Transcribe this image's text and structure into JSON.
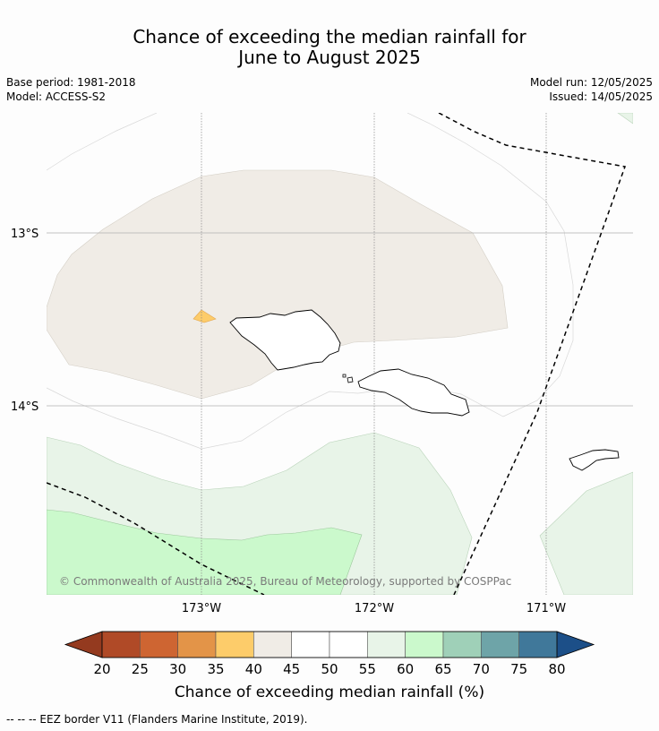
{
  "title_line1": "Chance of exceeding the median rainfall for",
  "title_line2": "June to August 2025",
  "base_period": "Base period: 1981-2018",
  "model": "Model: ACCESS-S2",
  "model_run": "Model run: 12/05/2025",
  "issued": "Issued: 14/05/2025",
  "lat_labels": [
    "13°S",
    "14°S"
  ],
  "lon_labels": [
    "173°W",
    "172°W",
    "171°W"
  ],
  "copyright": "© Commonwealth of Australia 2025, Bureau of Meteorology, supported by COSPPac",
  "colorbar": {
    "title": "Chance of exceeding median rainfall (%)",
    "ticks": [
      "20",
      "25",
      "30",
      "35",
      "40",
      "45",
      "50",
      "55",
      "60",
      "65",
      "70",
      "75",
      "80"
    ],
    "colors": [
      "#b04a27",
      "#ce6532",
      "#e39448",
      "#fdcc6a",
      "#f0ece6",
      "#ffffff",
      "#ffffff",
      "#e8f4e8",
      "#cbf9cc",
      "#9fd0b8",
      "#6ea4a8",
      "#40789a"
    ],
    "under_color": "#943a1f",
    "over_color": "#1c4f88"
  },
  "region_colors": {
    "tan": "#f0ece6",
    "light_green": "#e8f4e8",
    "mint": "#cbf9cc",
    "orange": "#fdcc6a"
  },
  "footer": "--  --  -- EEZ border V11 (Flanders Marine Institute, 2019)."
}
